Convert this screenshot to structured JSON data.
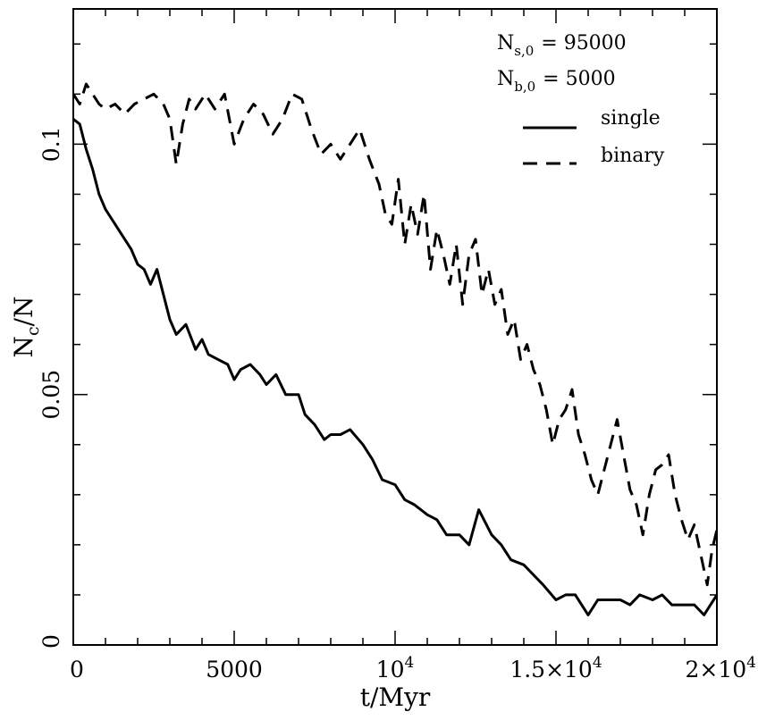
{
  "chart_data": {
    "type": "line",
    "xlabel": "t/Myr",
    "ylabel_main": "N",
    "ylabel_sub": "c",
    "ylabel_rest": "/N",
    "xlim": [
      0,
      20000
    ],
    "ylim": [
      0,
      0.127
    ],
    "x_tick_labels": [
      {
        "value": 0,
        "text": "0"
      },
      {
        "value": 5000,
        "text": "5000"
      },
      {
        "value": 10000,
        "base": "10",
        "exp": "4"
      },
      {
        "value": 15000,
        "base": "1.5×10",
        "exp": "4"
      },
      {
        "value": 20000,
        "base": "2×10",
        "exp": "4"
      }
    ],
    "y_tick_labels": [
      {
        "value": 0,
        "text": "0"
      },
      {
        "value": 0.05,
        "text": "0.05"
      },
      {
        "value": 0.1,
        "text": "0.1"
      }
    ],
    "annotations": {
      "line1_main": "N",
      "line1_sub": "s,0",
      "line1_value": "=  95000",
      "line2_main": "N",
      "line2_sub": "b,0",
      "line2_value": "=   5000"
    },
    "legend_position": "top-right",
    "series": [
      {
        "name": "single",
        "style": "solid",
        "points": [
          [
            0,
            0.105
          ],
          [
            200,
            0.104
          ],
          [
            400,
            0.099
          ],
          [
            600,
            0.095
          ],
          [
            800,
            0.09
          ],
          [
            1000,
            0.087
          ],
          [
            1200,
            0.085
          ],
          [
            1500,
            0.082
          ],
          [
            1800,
            0.079
          ],
          [
            2000,
            0.076
          ],
          [
            2200,
            0.075
          ],
          [
            2400,
            0.072
          ],
          [
            2600,
            0.075
          ],
          [
            2800,
            0.07
          ],
          [
            3000,
            0.065
          ],
          [
            3200,
            0.062
          ],
          [
            3500,
            0.064
          ],
          [
            3800,
            0.059
          ],
          [
            4000,
            0.061
          ],
          [
            4200,
            0.058
          ],
          [
            4500,
            0.057
          ],
          [
            4800,
            0.056
          ],
          [
            5000,
            0.053
          ],
          [
            5200,
            0.055
          ],
          [
            5500,
            0.056
          ],
          [
            5800,
            0.054
          ],
          [
            6000,
            0.052
          ],
          [
            6300,
            0.054
          ],
          [
            6600,
            0.05
          ],
          [
            7000,
            0.05
          ],
          [
            7200,
            0.046
          ],
          [
            7500,
            0.044
          ],
          [
            7800,
            0.041
          ],
          [
            8000,
            0.042
          ],
          [
            8300,
            0.042
          ],
          [
            8600,
            0.043
          ],
          [
            9000,
            0.04
          ],
          [
            9300,
            0.037
          ],
          [
            9600,
            0.033
          ],
          [
            10000,
            0.032
          ],
          [
            10300,
            0.029
          ],
          [
            10600,
            0.028
          ],
          [
            11000,
            0.026
          ],
          [
            11300,
            0.025
          ],
          [
            11600,
            0.022
          ],
          [
            12000,
            0.022
          ],
          [
            12300,
            0.02
          ],
          [
            12600,
            0.027
          ],
          [
            13000,
            0.022
          ],
          [
            13300,
            0.02
          ],
          [
            13600,
            0.017
          ],
          [
            14000,
            0.016
          ],
          [
            14300,
            0.014
          ],
          [
            14600,
            0.012
          ],
          [
            15000,
            0.009
          ],
          [
            15300,
            0.01
          ],
          [
            15600,
            0.01
          ],
          [
            16000,
            0.006
          ],
          [
            16300,
            0.009
          ],
          [
            16600,
            0.009
          ],
          [
            17000,
            0.009
          ],
          [
            17300,
            0.008
          ],
          [
            17600,
            0.01
          ],
          [
            18000,
            0.009
          ],
          [
            18300,
            0.01
          ],
          [
            18600,
            0.008
          ],
          [
            19000,
            0.008
          ],
          [
            19300,
            0.008
          ],
          [
            19600,
            0.006
          ],
          [
            20000,
            0.01
          ]
        ]
      },
      {
        "name": "binary",
        "style": "dashed",
        "points": [
          [
            0,
            0.11
          ],
          [
            200,
            0.108
          ],
          [
            400,
            0.112
          ],
          [
            600,
            0.11
          ],
          [
            800,
            0.108
          ],
          [
            1000,
            0.107
          ],
          [
            1300,
            0.108
          ],
          [
            1600,
            0.106
          ],
          [
            1900,
            0.108
          ],
          [
            2200,
            0.109
          ],
          [
            2500,
            0.11
          ],
          [
            2800,
            0.108
          ],
          [
            3000,
            0.105
          ],
          [
            3200,
            0.096
          ],
          [
            3400,
            0.104
          ],
          [
            3600,
            0.109
          ],
          [
            3800,
            0.107
          ],
          [
            4100,
            0.11
          ],
          [
            4400,
            0.107
          ],
          [
            4700,
            0.11
          ],
          [
            5000,
            0.1
          ],
          [
            5300,
            0.105
          ],
          [
            5600,
            0.108
          ],
          [
            5900,
            0.106
          ],
          [
            6200,
            0.102
          ],
          [
            6500,
            0.105
          ],
          [
            6800,
            0.11
          ],
          [
            7100,
            0.109
          ],
          [
            7400,
            0.103
          ],
          [
            7700,
            0.098
          ],
          [
            8000,
            0.1
          ],
          [
            8300,
            0.097
          ],
          [
            8600,
            0.1
          ],
          [
            8900,
            0.103
          ],
          [
            9200,
            0.097
          ],
          [
            9500,
            0.092
          ],
          [
            9700,
            0.086
          ],
          [
            9900,
            0.084
          ],
          [
            10100,
            0.093
          ],
          [
            10300,
            0.08
          ],
          [
            10500,
            0.088
          ],
          [
            10700,
            0.082
          ],
          [
            10900,
            0.09
          ],
          [
            11100,
            0.075
          ],
          [
            11300,
            0.083
          ],
          [
            11500,
            0.078
          ],
          [
            11700,
            0.072
          ],
          [
            11900,
            0.08
          ],
          [
            12100,
            0.068
          ],
          [
            12300,
            0.078
          ],
          [
            12500,
            0.081
          ],
          [
            12700,
            0.07
          ],
          [
            12900,
            0.075
          ],
          [
            13100,
            0.068
          ],
          [
            13300,
            0.071
          ],
          [
            13500,
            0.062
          ],
          [
            13700,
            0.065
          ],
          [
            13900,
            0.057
          ],
          [
            14100,
            0.06
          ],
          [
            14300,
            0.055
          ],
          [
            14500,
            0.052
          ],
          [
            14700,
            0.047
          ],
          [
            14900,
            0.04
          ],
          [
            15100,
            0.045
          ],
          [
            15300,
            0.047
          ],
          [
            15500,
            0.051
          ],
          [
            15700,
            0.042
          ],
          [
            15900,
            0.038
          ],
          [
            16100,
            0.033
          ],
          [
            16300,
            0.03
          ],
          [
            16500,
            0.035
          ],
          [
            16700,
            0.04
          ],
          [
            16900,
            0.045
          ],
          [
            17100,
            0.038
          ],
          [
            17300,
            0.031
          ],
          [
            17500,
            0.028
          ],
          [
            17700,
            0.022
          ],
          [
            17900,
            0.03
          ],
          [
            18100,
            0.035
          ],
          [
            18300,
            0.036
          ],
          [
            18500,
            0.038
          ],
          [
            18700,
            0.03
          ],
          [
            18900,
            0.025
          ],
          [
            19100,
            0.021
          ],
          [
            19300,
            0.024
          ],
          [
            19500,
            0.018
          ],
          [
            19700,
            0.012
          ],
          [
            19850,
            0.019
          ],
          [
            20000,
            0.023
          ]
        ]
      }
    ]
  }
}
